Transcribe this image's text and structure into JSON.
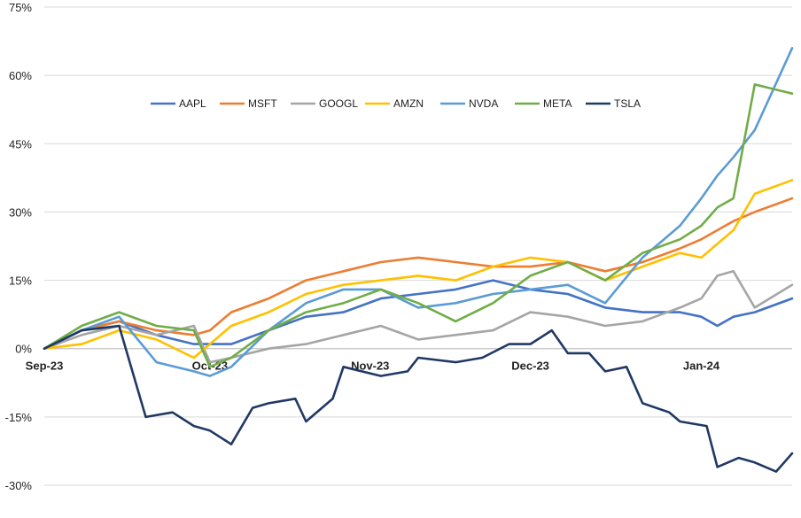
{
  "chart_data": {
    "type": "line",
    "title": "",
    "xlabel": "",
    "ylabel": "",
    "ylim": [
      -30,
      75
    ],
    "y_ticks": [
      -30,
      -15,
      0,
      15,
      30,
      45,
      60,
      75
    ],
    "y_tick_labels": [
      "-30%",
      "-15%",
      "0%",
      "15%",
      "30%",
      "45%",
      "60%",
      "75%"
    ],
    "x_range": [
      "2023-09-01",
      "2024-01-19"
    ],
    "x_tick_dates": [
      "2023-09-01",
      "2023-10-02",
      "2023-11-01",
      "2023-12-01",
      "2024-01-02"
    ],
    "x_tick_labels": [
      "Sep-23",
      "Oct-23",
      "Nov-23",
      "Dec-23",
      "Jan-24"
    ],
    "grid": "horizontal",
    "legend_position": "top",
    "series": [
      {
        "name": "AAPL",
        "color": "#4472C4",
        "points": [
          [
            "2023-09-01",
            0
          ],
          [
            "2023-09-08",
            4
          ],
          [
            "2023-09-15",
            6
          ],
          [
            "2023-09-22",
            3
          ],
          [
            "2023-09-29",
            1
          ],
          [
            "2023-10-02",
            1
          ],
          [
            "2023-10-06",
            1
          ],
          [
            "2023-10-13",
            4
          ],
          [
            "2023-10-20",
            7
          ],
          [
            "2023-10-27",
            8
          ],
          [
            "2023-11-03",
            11
          ],
          [
            "2023-11-10",
            12
          ],
          [
            "2023-11-17",
            13
          ],
          [
            "2023-11-24",
            15
          ],
          [
            "2023-12-01",
            13
          ],
          [
            "2023-12-08",
            12
          ],
          [
            "2023-12-15",
            9
          ],
          [
            "2023-12-22",
            8
          ],
          [
            "2023-12-29",
            8
          ],
          [
            "2024-01-02",
            7
          ],
          [
            "2024-01-05",
            5
          ],
          [
            "2024-01-08",
            7
          ],
          [
            "2024-01-12",
            8
          ],
          [
            "2024-01-19",
            11
          ]
        ]
      },
      {
        "name": "MSFT",
        "color": "#ED7D31",
        "points": [
          [
            "2023-09-01",
            0
          ],
          [
            "2023-09-08",
            4
          ],
          [
            "2023-09-15",
            6
          ],
          [
            "2023-09-22",
            4
          ],
          [
            "2023-09-29",
            3
          ],
          [
            "2023-10-02",
            4
          ],
          [
            "2023-10-06",
            8
          ],
          [
            "2023-10-13",
            11
          ],
          [
            "2023-10-20",
            15
          ],
          [
            "2023-10-27",
            17
          ],
          [
            "2023-11-03",
            19
          ],
          [
            "2023-11-10",
            20
          ],
          [
            "2023-11-17",
            19
          ],
          [
            "2023-11-24",
            18
          ],
          [
            "2023-12-01",
            18
          ],
          [
            "2023-12-08",
            19
          ],
          [
            "2023-12-15",
            17
          ],
          [
            "2023-12-22",
            19
          ],
          [
            "2023-12-29",
            22
          ],
          [
            "2024-01-02",
            24
          ],
          [
            "2024-01-05",
            26
          ],
          [
            "2024-01-08",
            28
          ],
          [
            "2024-01-12",
            30
          ],
          [
            "2024-01-19",
            33
          ]
        ]
      },
      {
        "name": "GOOGL",
        "color": "#A5A5A5",
        "points": [
          [
            "2023-09-01",
            0
          ],
          [
            "2023-09-08",
            3
          ],
          [
            "2023-09-15",
            5
          ],
          [
            "2023-09-22",
            3
          ],
          [
            "2023-09-29",
            5
          ],
          [
            "2023-10-02",
            -3
          ],
          [
            "2023-10-06",
            -2
          ],
          [
            "2023-10-13",
            0
          ],
          [
            "2023-10-20",
            1
          ],
          [
            "2023-10-27",
            3
          ],
          [
            "2023-11-03",
            5
          ],
          [
            "2023-11-10",
            2
          ],
          [
            "2023-11-17",
            3
          ],
          [
            "2023-11-24",
            4
          ],
          [
            "2023-12-01",
            8
          ],
          [
            "2023-12-08",
            7
          ],
          [
            "2023-12-15",
            5
          ],
          [
            "2023-12-22",
            6
          ],
          [
            "2023-12-29",
            9
          ],
          [
            "2024-01-02",
            11
          ],
          [
            "2024-01-05",
            16
          ],
          [
            "2024-01-08",
            17
          ],
          [
            "2024-01-12",
            9
          ],
          [
            "2024-01-19",
            14
          ]
        ]
      },
      {
        "name": "AMZN",
        "color": "#FFC000",
        "points": [
          [
            "2023-09-01",
            0
          ],
          [
            "2023-09-08",
            1
          ],
          [
            "2023-09-15",
            4
          ],
          [
            "2023-09-22",
            2
          ],
          [
            "2023-09-29",
            -2
          ],
          [
            "2023-10-02",
            1
          ],
          [
            "2023-10-06",
            5
          ],
          [
            "2023-10-13",
            8
          ],
          [
            "2023-10-20",
            12
          ],
          [
            "2023-10-27",
            14
          ],
          [
            "2023-11-03",
            15
          ],
          [
            "2023-11-10",
            16
          ],
          [
            "2023-11-17",
            15
          ],
          [
            "2023-11-24",
            18
          ],
          [
            "2023-12-01",
            20
          ],
          [
            "2023-12-08",
            19
          ],
          [
            "2023-12-15",
            15
          ],
          [
            "2023-12-22",
            18
          ],
          [
            "2023-12-29",
            21
          ],
          [
            "2024-01-02",
            20
          ],
          [
            "2024-01-05",
            23
          ],
          [
            "2024-01-08",
            26
          ],
          [
            "2024-01-12",
            34
          ],
          [
            "2024-01-19",
            37
          ]
        ]
      },
      {
        "name": "NVDA",
        "color": "#5B9BD5",
        "points": [
          [
            "2023-09-01",
            0
          ],
          [
            "2023-09-08",
            4
          ],
          [
            "2023-09-15",
            7
          ],
          [
            "2023-09-22",
            -3
          ],
          [
            "2023-09-29",
            -5
          ],
          [
            "2023-10-02",
            -6
          ],
          [
            "2023-10-06",
            -4
          ],
          [
            "2023-10-13",
            4
          ],
          [
            "2023-10-20",
            10
          ],
          [
            "2023-10-27",
            13
          ],
          [
            "2023-11-03",
            13
          ],
          [
            "2023-11-10",
            9
          ],
          [
            "2023-11-17",
            10
          ],
          [
            "2023-11-24",
            12
          ],
          [
            "2023-12-01",
            13
          ],
          [
            "2023-12-08",
            14
          ],
          [
            "2023-12-15",
            10
          ],
          [
            "2023-12-22",
            20
          ],
          [
            "2023-12-29",
            27
          ],
          [
            "2024-01-02",
            33
          ],
          [
            "2024-01-05",
            38
          ],
          [
            "2024-01-08",
            42
          ],
          [
            "2024-01-12",
            48
          ],
          [
            "2024-01-19",
            66
          ]
        ]
      },
      {
        "name": "META",
        "color": "#70AD47",
        "points": [
          [
            "2023-09-01",
            0
          ],
          [
            "2023-09-08",
            5
          ],
          [
            "2023-09-15",
            8
          ],
          [
            "2023-09-22",
            5
          ],
          [
            "2023-09-29",
            4
          ],
          [
            "2023-10-02",
            -4
          ],
          [
            "2023-10-06",
            -2
          ],
          [
            "2023-10-13",
            4
          ],
          [
            "2023-10-20",
            8
          ],
          [
            "2023-10-27",
            10
          ],
          [
            "2023-11-03",
            13
          ],
          [
            "2023-11-10",
            10
          ],
          [
            "2023-11-17",
            6
          ],
          [
            "2023-11-24",
            10
          ],
          [
            "2023-12-01",
            16
          ],
          [
            "2023-12-08",
            19
          ],
          [
            "2023-12-15",
            15
          ],
          [
            "2023-12-22",
            21
          ],
          [
            "2023-12-29",
            24
          ],
          [
            "2024-01-02",
            27
          ],
          [
            "2024-01-05",
            31
          ],
          [
            "2024-01-08",
            33
          ],
          [
            "2024-01-12",
            58
          ],
          [
            "2024-01-19",
            56
          ]
        ]
      },
      {
        "name": "TSLA",
        "color": "#203864",
        "points": [
          [
            "2023-09-01",
            0
          ],
          [
            "2023-09-08",
            4
          ],
          [
            "2023-09-15",
            5
          ],
          [
            "2023-09-20",
            -15
          ],
          [
            "2023-09-25",
            -14
          ],
          [
            "2023-09-29",
            -17
          ],
          [
            "2023-10-02",
            -18
          ],
          [
            "2023-10-06",
            -21
          ],
          [
            "2023-10-10",
            -13
          ],
          [
            "2023-10-13",
            -12
          ],
          [
            "2023-10-18",
            -11
          ],
          [
            "2023-10-20",
            -16
          ],
          [
            "2023-10-25",
            -11
          ],
          [
            "2023-10-27",
            -4
          ],
          [
            "2023-11-03",
            -6
          ],
          [
            "2023-11-08",
            -5
          ],
          [
            "2023-11-10",
            -2
          ],
          [
            "2023-11-17",
            -3
          ],
          [
            "2023-11-22",
            -2
          ],
          [
            "2023-11-27",
            1
          ],
          [
            "2023-12-01",
            1
          ],
          [
            "2023-12-05",
            4
          ],
          [
            "2023-12-08",
            -1
          ],
          [
            "2023-12-12",
            -1
          ],
          [
            "2023-12-15",
            -5
          ],
          [
            "2023-12-19",
            -4
          ],
          [
            "2023-12-22",
            -12
          ],
          [
            "2023-12-27",
            -14
          ],
          [
            "2023-12-29",
            -16
          ],
          [
            "2024-01-03",
            -17
          ],
          [
            "2024-01-05",
            -26
          ],
          [
            "2024-01-09",
            -24
          ],
          [
            "2024-01-12",
            -25
          ],
          [
            "2024-01-16",
            -27
          ],
          [
            "2024-01-19",
            -23
          ]
        ]
      }
    ]
  }
}
